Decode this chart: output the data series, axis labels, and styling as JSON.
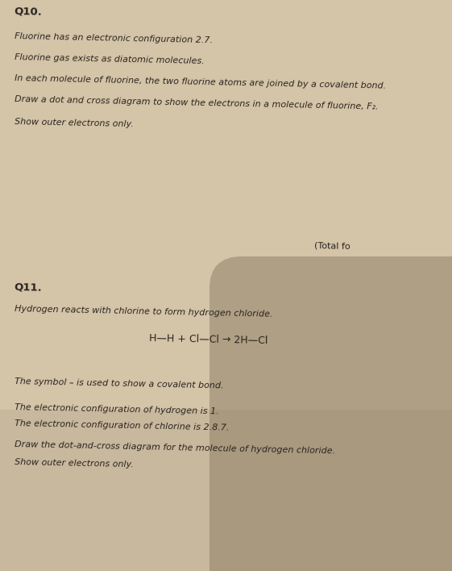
{
  "background_color": "#d4c4a8",
  "title_q10": "Q10.",
  "line1": "Fluorine has an electronic configuration 2.7.",
  "line2": "Fluorine gas exists as diatomic molecules.",
  "line3": "In each molecule of fluorine, the two fluorine atoms are joined by a covalent bond.",
  "line4": "Draw a dot and cross diagram to show the electrons in a molecule of fluorine, F₂.",
  "line5": "Show outer electrons only.",
  "total_fo": "(Total fo",
  "title_q11": "Q11.",
  "line6": "Hydrogen reacts with chlorine to form hydrogen chloride.",
  "equation": "H—H + Cl—Cl → 2H—Cl",
  "line7": "The symbol – is used to show a covalent bond.",
  "line8": "The electronic configuration of hydrogen is 1.",
  "line9": "The electronic configuration of chlorine is 2.8.7.",
  "line10": "Draw the dot-and-cross diagram for the molecule of hydrogen chloride.",
  "line11": "Show outer electrons only.",
  "font_size_heading": 9.5,
  "font_size_body": 8.0,
  "font_size_equation": 9.0,
  "text_color": "#2a2520"
}
